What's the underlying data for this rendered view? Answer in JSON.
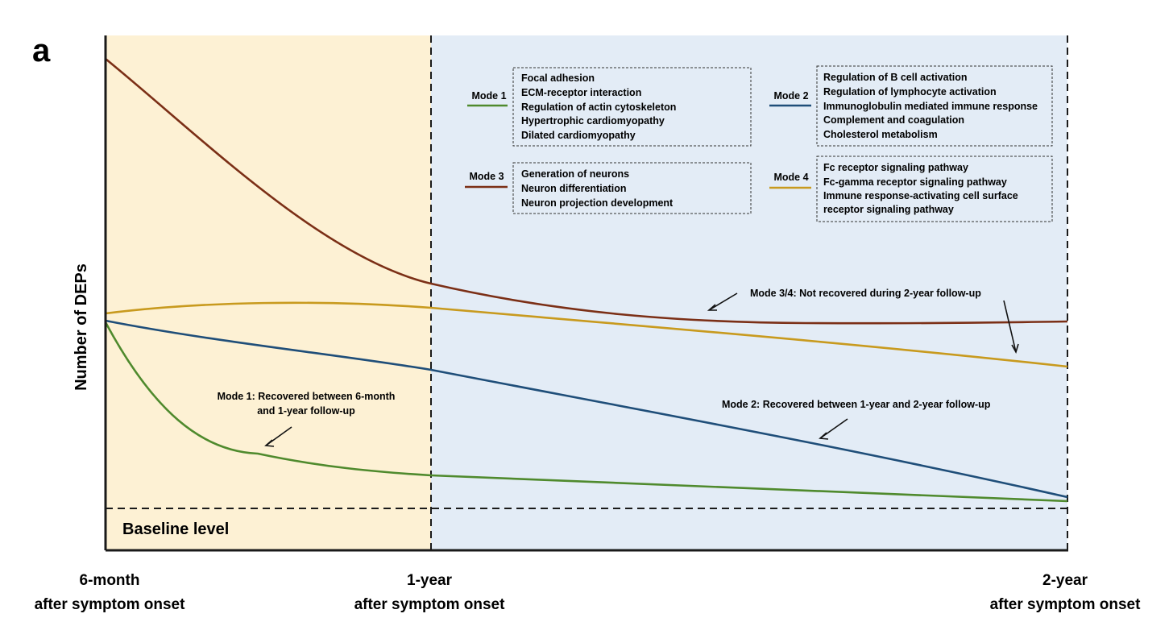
{
  "panel_label": "a",
  "y_axis_label": "Number of DEPs",
  "baseline_label": "Baseline level",
  "x_ticks": [
    {
      "line1": "6-month",
      "line2": "after symptom onset"
    },
    {
      "line1": "1-year",
      "line2": "after symptom onset"
    },
    {
      "line1": "2-year",
      "line2": "after symptom onset"
    }
  ],
  "colors": {
    "phase1_bg": "#fdf1d4",
    "phase2_bg": "#e3ecf6",
    "mode1": "#4f8a2d",
    "mode2": "#1f4e79",
    "mode3": "#7b2f16",
    "mode4": "#c89a1e"
  },
  "legend": [
    {
      "mode": "Mode 1",
      "color_key": "mode1",
      "pathways": [
        "Focal adhesion",
        "ECM-receptor interaction",
        "Regulation of actin cytoskeleton",
        "Hypertrophic cardiomyopathy",
        "Dilated cardiomyopathy"
      ]
    },
    {
      "mode": "Mode 2",
      "color_key": "mode2",
      "pathways": [
        "Regulation of B cell activation",
        "Regulation of lymphocyte activation",
        "Immunoglobulin mediated immune response",
        "Complement and coagulation",
        "Cholesterol metabolism"
      ]
    },
    {
      "mode": "Mode 3",
      "color_key": "mode3",
      "pathways": [
        "Generation of neurons",
        "Neuron differentiation",
        "Neuron projection development"
      ]
    },
    {
      "mode": "Mode 4",
      "color_key": "mode4",
      "pathways": [
        "Fc receptor signaling pathway",
        "Fc-gamma receptor signaling pathway",
        "Immune response-activating cell surface",
        "receptor signaling pathway"
      ]
    }
  ],
  "annotations": {
    "mode34": "Mode 3/4: Not recovered during 2-year follow-up",
    "mode2": "Mode 2: Recovered between 1-year and 2-year follow-up",
    "mode1_line1": "Mode 1: Recovered between 6-month",
    "mode1_line2": "and 1-year follow-up"
  }
}
